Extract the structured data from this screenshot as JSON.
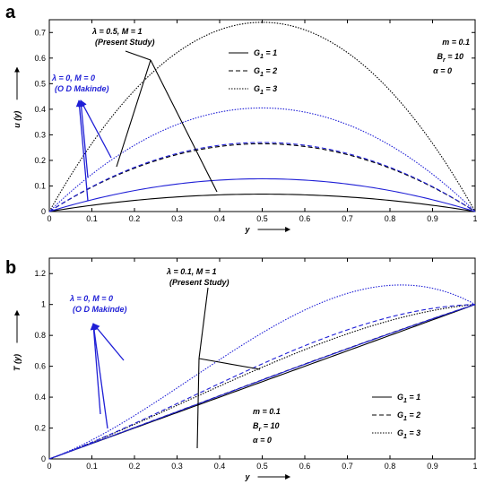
{
  "chart_data": [
    {
      "type": "line",
      "panel_label": "a",
      "xlabel": "y",
      "ylabel": "u (y)",
      "xlim": [
        0,
        1
      ],
      "ylim": [
        0,
        0.75
      ],
      "xticks": [
        "0",
        "0.1",
        "0.2",
        "0.3",
        "0.4",
        "0.5",
        "0.6",
        "0.7",
        "0.8",
        "0.9",
        "1"
      ],
      "yticks": [
        "0",
        "0.1",
        "0.2",
        "0.3",
        "0.4",
        "0.5",
        "0.6",
        "0.7"
      ],
      "grid": false,
      "legend_position": "top-center",
      "legend": [
        {
          "label": "G",
          "sub": "1",
          "value": " = 1",
          "style": "solid"
        },
        {
          "label": "G",
          "sub": "1",
          "value": " = 2",
          "style": "dashed"
        },
        {
          "label": "G",
          "sub": "1",
          "value": " = 3",
          "style": "dashdot"
        }
      ],
      "params": {
        "m": "m = 0.1",
        "br": "B",
        "br_sub": "r",
        "br_val": " = 10",
        "alpha": "α = 0"
      },
      "annotations": {
        "present": "λ = 0.5,  M = 1",
        "present_sub": "(Present Study)",
        "makinde": "λ = 0,  M = 0",
        "makinde_sub": "(O D Makinde)"
      },
      "colors": {
        "present": "#000000",
        "makinde": "#1f1fd6"
      },
      "series": [
        {
          "group": "present",
          "style": "solid",
          "shape": "parabola",
          "peak": 0.068
        },
        {
          "group": "present",
          "style": "dashed",
          "shape": "parabola",
          "peak": 0.265
        },
        {
          "group": "present",
          "style": "dashdot",
          "shape": "parabola",
          "peak": 0.74
        },
        {
          "group": "makinde",
          "style": "solid",
          "shape": "parabola",
          "peak": 0.128
        },
        {
          "group": "makinde",
          "style": "dashed",
          "shape": "parabola",
          "peak": 0.27
        },
        {
          "group": "makinde",
          "style": "dashdot",
          "shape": "parabola",
          "peak": 0.405
        }
      ]
    },
    {
      "type": "line",
      "panel_label": "b",
      "xlabel": "y",
      "ylabel": "T (y)",
      "xlim": [
        0,
        1
      ],
      "ylim": [
        0,
        1.3
      ],
      "xticks": [
        "0",
        "0.1",
        "0.2",
        "0.3",
        "0.4",
        "0.5",
        "0.6",
        "0.7",
        "0.8",
        "0.9",
        "1"
      ],
      "yticks": [
        "0",
        "0.2",
        "0.4",
        "0.6",
        "0.8",
        "1",
        "1.2"
      ],
      "grid": false,
      "legend_position": "bottom-right",
      "legend": [
        {
          "label": "G",
          "sub": "1",
          "value": " = 1",
          "style": "solid"
        },
        {
          "label": "G",
          "sub": "1",
          "value": " = 2",
          "style": "dashed"
        },
        {
          "label": "G",
          "sub": "1",
          "value": " = 3",
          "style": "dashdot"
        }
      ],
      "params": {
        "m": "m = 0.1",
        "br": "B",
        "br_sub": "r",
        "br_val": " = 10",
        "alpha": "α = 0"
      },
      "annotations": {
        "present": "λ = 0.1,  M = 1",
        "present_sub": "(Present Study)",
        "makinde": "λ = 0,  M = 0",
        "makinde_sub": "(O D Makinde)"
      },
      "colors": {
        "present": "#000000",
        "makinde": "#1f1fd6"
      },
      "series": [
        {
          "group": "present",
          "style": "solid",
          "shape": "linear_plus_bump",
          "amp": 0.0
        },
        {
          "group": "present",
          "style": "dashed",
          "shape": "linear_plus_bump",
          "amp": 0.045
        },
        {
          "group": "present",
          "style": "dashdot",
          "shape": "linear_plus_bump",
          "amp": 0.34
        },
        {
          "group": "makinde",
          "style": "solid",
          "shape": "linear_plus_bump",
          "amp": 0.04
        },
        {
          "group": "makinde",
          "style": "dashed",
          "shape": "linear_plus_bump",
          "amp": 0.42
        },
        {
          "group": "makinde",
          "style": "dashdot",
          "shape": "linear_plus_bump",
          "amp": 1.15
        }
      ]
    }
  ]
}
